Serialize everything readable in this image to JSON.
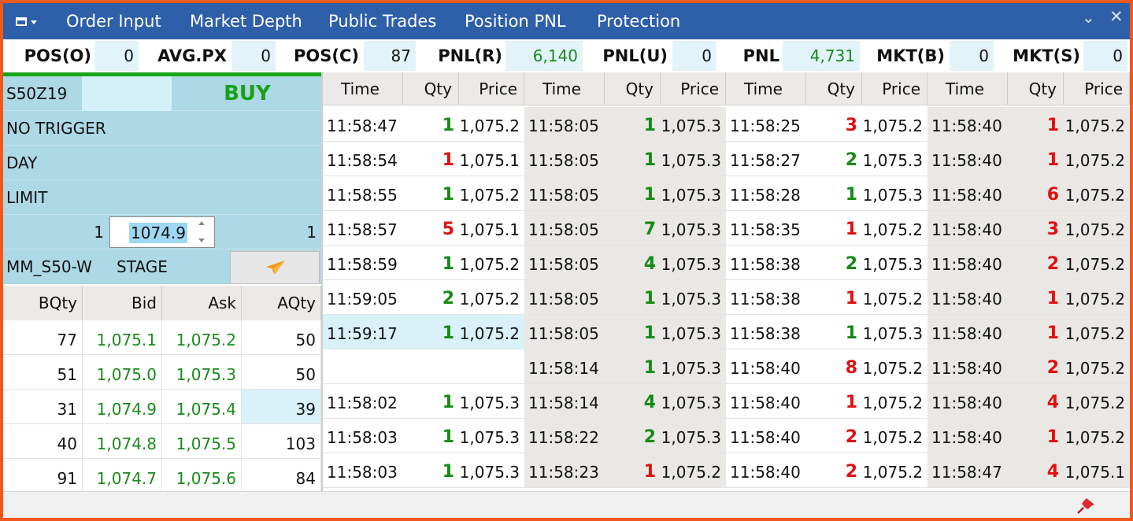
{
  "titlebar": {
    "menu_icon": "window-menu-icon",
    "tabs": [
      "Order Input",
      "Market Depth",
      "Public Trades",
      "Position PNL",
      "Protection"
    ],
    "chevron_glyph": "⌄",
    "close_glyph": "✕"
  },
  "stats": {
    "pos_o_label": "POS(O)",
    "pos_o": "0",
    "avg_px_label": "AVG.PX",
    "avg_px": "0",
    "pos_c_label": "POS(C)",
    "pos_c": "87",
    "pnl_r_label": "PNL(R)",
    "pnl_r": "6,140",
    "pnl_u_label": "PNL(U)",
    "pnl_u": "0",
    "pnl_label": "PNL",
    "pnl": "4,731",
    "mkt_b_label": "MKT(B)",
    "mkt_b": "0",
    "mkt_s_label": "MKT(S)",
    "mkt_s": "0"
  },
  "order": {
    "symbol": "S50Z19",
    "side": "BUY",
    "trigger": "NO TRIGGER",
    "validity": "DAY",
    "order_type": "LIMIT",
    "qty_left": "1",
    "price": "1074.9",
    "qty_right": "1",
    "account": "MM_S50-W",
    "mode": "STAGE",
    "send_icon": "paper-plane-icon"
  },
  "depth": {
    "headers": [
      "BQty",
      "Bid",
      "Ask",
      "AQty"
    ],
    "rows": [
      [
        "77",
        "1,075.1",
        "1,075.2",
        "50"
      ],
      [
        "51",
        "1,075.0",
        "1,075.3",
        "50"
      ],
      [
        "31",
        "1,074.9",
        "1,075.4",
        "39"
      ],
      [
        "40",
        "1,074.8",
        "1,075.5",
        "103"
      ],
      [
        "91",
        "1,074.7",
        "1,075.6",
        "84"
      ]
    ]
  },
  "trades": {
    "headers": [
      "Time",
      "Qty",
      "Price",
      "Time",
      "Qty",
      "Price",
      "Time",
      "Qty",
      "Price",
      "Time",
      "Qty",
      "Price"
    ],
    "columns": [
      [
        [
          "11:58:47",
          "1",
          "1,075.2",
          "up"
        ],
        [
          "11:58:54",
          "1",
          "1,075.1",
          "down"
        ],
        [
          "11:58:55",
          "1",
          "1,075.2",
          "up"
        ],
        [
          "11:58:57",
          "5",
          "1,075.1",
          "down"
        ],
        [
          "11:58:59",
          "1",
          "1,075.2",
          "up"
        ],
        [
          "11:59:05",
          "2",
          "1,075.2",
          "up"
        ],
        [
          "11:59:17",
          "1",
          "1,075.2",
          "up"
        ],
        [
          "",
          "",
          "",
          ""
        ],
        [
          "11:58:02",
          "1",
          "1,075.3",
          "up"
        ],
        [
          "11:58:03",
          "1",
          "1,075.3",
          "up"
        ],
        [
          "11:58:03",
          "1",
          "1,075.3",
          "up"
        ]
      ],
      [
        [
          "11:58:05",
          "1",
          "1,075.3",
          "up"
        ],
        [
          "11:58:05",
          "1",
          "1,075.3",
          "up"
        ],
        [
          "11:58:05",
          "1",
          "1,075.3",
          "up"
        ],
        [
          "11:58:05",
          "7",
          "1,075.3",
          "up"
        ],
        [
          "11:58:05",
          "4",
          "1,075.3",
          "up"
        ],
        [
          "11:58:05",
          "1",
          "1,075.3",
          "up"
        ],
        [
          "11:58:05",
          "1",
          "1,075.3",
          "up"
        ],
        [
          "11:58:14",
          "1",
          "1,075.3",
          "up"
        ],
        [
          "11:58:14",
          "4",
          "1,075.3",
          "up"
        ],
        [
          "11:58:22",
          "2",
          "1,075.3",
          "up"
        ],
        [
          "11:58:23",
          "1",
          "1,075.2",
          "down"
        ]
      ],
      [
        [
          "11:58:25",
          "3",
          "1,075.2",
          "down"
        ],
        [
          "11:58:27",
          "2",
          "1,075.3",
          "up"
        ],
        [
          "11:58:28",
          "1",
          "1,075.3",
          "up"
        ],
        [
          "11:58:35",
          "1",
          "1,075.2",
          "down"
        ],
        [
          "11:58:38",
          "2",
          "1,075.3",
          "up"
        ],
        [
          "11:58:38",
          "1",
          "1,075.2",
          "down"
        ],
        [
          "11:58:38",
          "1",
          "1,075.3",
          "up"
        ],
        [
          "11:58:40",
          "8",
          "1,075.2",
          "down"
        ],
        [
          "11:58:40",
          "1",
          "1,075.2",
          "down"
        ],
        [
          "11:58:40",
          "2",
          "1,075.2",
          "down"
        ],
        [
          "11:58:40",
          "2",
          "1,075.2",
          "down"
        ]
      ],
      [
        [
          "11:58:40",
          "1",
          "1,075.2",
          "down"
        ],
        [
          "11:58:40",
          "1",
          "1,075.2",
          "down"
        ],
        [
          "11:58:40",
          "6",
          "1,075.2",
          "down"
        ],
        [
          "11:58:40",
          "3",
          "1,075.2",
          "down"
        ],
        [
          "11:58:40",
          "2",
          "1,075.2",
          "down"
        ],
        [
          "11:58:40",
          "1",
          "1,075.2",
          "down"
        ],
        [
          "11:58:40",
          "1",
          "1,075.2",
          "down"
        ],
        [
          "11:58:40",
          "2",
          "1,075.2",
          "down"
        ],
        [
          "11:58:40",
          "4",
          "1,075.2",
          "down"
        ],
        [
          "11:58:40",
          "1",
          "1,075.2",
          "down"
        ],
        [
          "11:58:47",
          "4",
          "1,075.1",
          "down"
        ]
      ]
    ]
  },
  "bottombar": {
    "pin_icon": "pushpin-icon"
  },
  "colors": {
    "accent": "#2e5fa9",
    "frame": "#f1591c",
    "buy": "#18a018",
    "up": "#168a16",
    "down": "#e01010",
    "order_bg": "#add8e5"
  }
}
